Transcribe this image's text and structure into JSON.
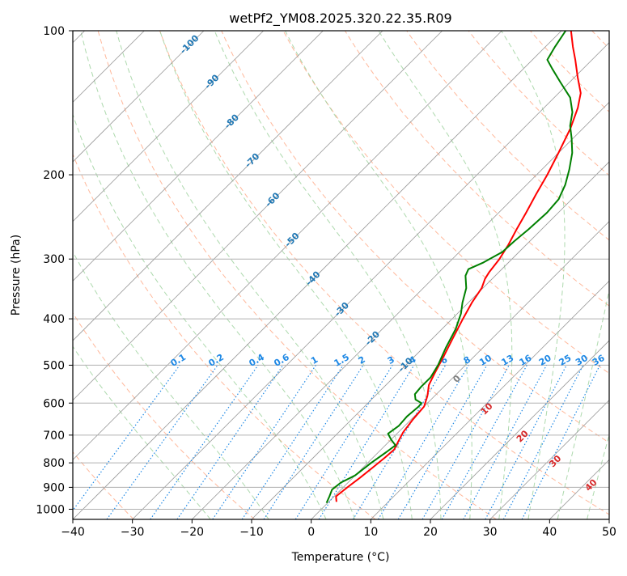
{
  "chart_data": {
    "type": "skew-t log-p diagram",
    "title": "wetPf2_YM08.2025.320.22.35.R09",
    "xlabel": "Temperature (°C)",
    "ylabel": "Pressure (hPa)",
    "xlim": [
      -40,
      50
    ],
    "ylim": [
      1050,
      100
    ],
    "y_scale": "log",
    "grid": true,
    "x_ticks": [
      -40,
      -30,
      -20,
      -10,
      0,
      10,
      20,
      30,
      40,
      50
    ],
    "x_tick_labels": [
      "−40",
      "−30",
      "−20",
      "−10",
      "0",
      "10",
      "20",
      "30",
      "40",
      "50"
    ],
    "y_ticks": [
      100,
      200,
      300,
      400,
      500,
      600,
      700,
      800,
      900,
      1000
    ],
    "y_tick_labels": [
      "100",
      "200",
      "300",
      "400",
      "500",
      "600",
      "700",
      "800",
      "900",
      "1000"
    ],
    "series": [
      {
        "kind": "temperature",
        "color": "#ff0000",
        "points": [
          {
            "p": 965,
            "t": 1.3
          },
          {
            "p": 940,
            "t": 0.3
          },
          {
            "p": 900,
            "t": 0.7
          },
          {
            "p": 860,
            "t": 1.2
          },
          {
            "p": 820,
            "t": 1.6
          },
          {
            "p": 780,
            "t": 2.0
          },
          {
            "p": 750,
            "t": 2.2
          },
          {
            "p": 720,
            "t": 1.5
          },
          {
            "p": 690,
            "t": 0.8
          },
          {
            "p": 650,
            "t": 0.3
          },
          {
            "p": 610,
            "t": 0.0
          },
          {
            "p": 580,
            "t": -1.2
          },
          {
            "p": 550,
            "t": -2.8
          },
          {
            "p": 520,
            "t": -3.8
          },
          {
            "p": 480,
            "t": -5.1
          },
          {
            "p": 440,
            "t": -6.6
          },
          {
            "p": 400,
            "t": -8.2
          },
          {
            "p": 370,
            "t": -9.4
          },
          {
            "p": 345,
            "t": -10.2
          },
          {
            "p": 330,
            "t": -11.2
          },
          {
            "p": 320,
            "t": -11.6
          },
          {
            "p": 300,
            "t": -12.1
          },
          {
            "p": 280,
            "t": -13.0
          },
          {
            "p": 260,
            "t": -14.2
          },
          {
            "p": 240,
            "t": -15.4
          },
          {
            "p": 220,
            "t": -16.8
          },
          {
            "p": 200,
            "t": -18.2
          },
          {
            "p": 180,
            "t": -20.0
          },
          {
            "p": 160,
            "t": -22.1
          },
          {
            "p": 145,
            "t": -24.3
          },
          {
            "p": 135,
            "t": -26.3
          },
          {
            "p": 125,
            "t": -29.5
          },
          {
            "p": 115,
            "t": -32.8
          },
          {
            "p": 108,
            "t": -35.4
          },
          {
            "p": 100,
            "t": -38.4
          }
        ]
      },
      {
        "kind": "dewpoint",
        "color": "#008000",
        "points": [
          {
            "p": 970,
            "t": -0.2
          },
          {
            "p": 940,
            "t": -0.8
          },
          {
            "p": 910,
            "t": -1.5
          },
          {
            "p": 880,
            "t": -1.2
          },
          {
            "p": 850,
            "t": 0.0
          },
          {
            "p": 800,
            "t": 0.6
          },
          {
            "p": 760,
            "t": 1.3
          },
          {
            "p": 735,
            "t": 1.7
          },
          {
            "p": 715,
            "t": 0.0
          },
          {
            "p": 695,
            "t": -1.5
          },
          {
            "p": 670,
            "t": -1.0
          },
          {
            "p": 640,
            "t": -1.2
          },
          {
            "p": 610,
            "t": -0.9
          },
          {
            "p": 600,
            "t": -1.0
          },
          {
            "p": 590,
            "t": -2.6
          },
          {
            "p": 575,
            "t": -3.6
          },
          {
            "p": 555,
            "t": -3.8
          },
          {
            "p": 530,
            "t": -3.8
          },
          {
            "p": 500,
            "t": -4.6
          },
          {
            "p": 460,
            "t": -6.2
          },
          {
            "p": 420,
            "t": -7.7
          },
          {
            "p": 390,
            "t": -9.4
          },
          {
            "p": 370,
            "t": -11.0
          },
          {
            "p": 345,
            "t": -12.8
          },
          {
            "p": 325,
            "t": -15.0
          },
          {
            "p": 315,
            "t": -15.6
          },
          {
            "p": 305,
            "t": -14.2
          },
          {
            "p": 290,
            "t": -12.8
          },
          {
            "p": 275,
            "t": -12.6
          },
          {
            "p": 260,
            "t": -12.2
          },
          {
            "p": 240,
            "t": -11.9
          },
          {
            "p": 225,
            "t": -12.2
          },
          {
            "p": 210,
            "t": -13.5
          },
          {
            "p": 195,
            "t": -15.4
          },
          {
            "p": 180,
            "t": -17.7
          },
          {
            "p": 168,
            "t": -20.2
          },
          {
            "p": 158,
            "t": -22.6
          },
          {
            "p": 148,
            "t": -24.5
          },
          {
            "p": 138,
            "t": -27.3
          },
          {
            "p": 128,
            "t": -31.6
          },
          {
            "p": 120,
            "t": -35.2
          },
          {
            "p": 115,
            "t": -37.5
          },
          {
            "p": 108,
            "t": -38.4
          },
          {
            "p": 100,
            "t": -39.3
          }
        ]
      }
    ],
    "dry_adiabats_theta_K": [
      200,
      220,
      240,
      260,
      280,
      300,
      320,
      340,
      360,
      380,
      400,
      420,
      440,
      460,
      480
    ],
    "moist_adiabats_thetaw_C": [
      -20,
      -10,
      0,
      5,
      10,
      15,
      20,
      25,
      30,
      35,
      40,
      45
    ],
    "isotherm_labels": [
      {
        "t": -100,
        "p": 107
      },
      {
        "t": -90,
        "p": 128
      },
      {
        "t": -80,
        "p": 155
      },
      {
        "t": -70,
        "p": 187
      },
      {
        "t": -60,
        "p": 226
      },
      {
        "t": -50,
        "p": 274
      },
      {
        "t": -40,
        "p": 330
      },
      {
        "t": -30,
        "p": 383
      },
      {
        "t": -20,
        "p": 440
      },
      {
        "t": -10,
        "p": 500
      }
    ],
    "isotherm_label_text": [
      "-100",
      "-90",
      "-80",
      "-70",
      "-60",
      "-50",
      "-40",
      "-30",
      "-20",
      "-10"
    ],
    "mixing_ratios_gkg": [
      0.1,
      0.2,
      0.4,
      0.6,
      1,
      1.5,
      2,
      3,
      4,
      6,
      8,
      10,
      13,
      16,
      20,
      25,
      30,
      36
    ],
    "mixing_ratio_label_text": [
      "0.1",
      "0.2",
      "0.4",
      "0.6",
      "1",
      "1.5",
      "2",
      "3",
      "4",
      "6",
      "8",
      "10",
      "13",
      "16",
      "20",
      "25",
      "30",
      "36"
    ],
    "mixing_ratio_label_pressure": 500,
    "pseudo_labels": [
      {
        "text": "0",
        "t": 24.5,
        "p": 535,
        "color": "#808080"
      },
      {
        "text": "10",
        "t": 29.5,
        "p": 618,
        "color": "#d62728"
      },
      {
        "text": "20",
        "t": 35.5,
        "p": 705,
        "color": "#d62728"
      },
      {
        "text": "30",
        "t": 41.0,
        "p": 795,
        "color": "#d62728"
      },
      {
        "text": "40",
        "t": 47.0,
        "p": 892,
        "color": "#d62728"
      }
    ],
    "colors": {
      "temperature": "#ff0000",
      "dewpoint": "#008000",
      "isotherm_label": "#1f77b4",
      "mixing_ratio": "#1e88e5",
      "dry_adiabat": "#ffa07a",
      "moist_adiabat": "#98d098",
      "grid": "#b0b0b0"
    }
  }
}
